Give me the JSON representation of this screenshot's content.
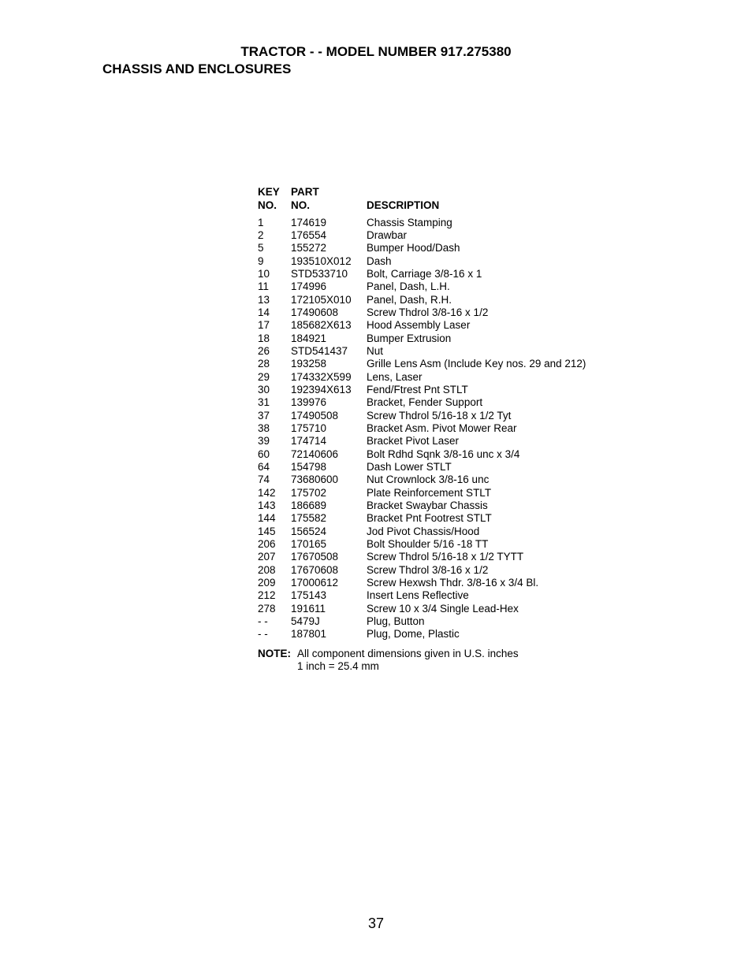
{
  "header": {
    "title": "TRACTOR - - MODEL NUMBER  917.275380",
    "subtitle": "CHASSIS AND ENCLOSURES"
  },
  "columns": {
    "key_line1": "KEY",
    "key_line2": "NO.",
    "part_line1": "PART",
    "part_line2": "NO.",
    "desc": "DESCRIPTION"
  },
  "parts": [
    {
      "key": "1",
      "part": "174619",
      "desc": "Chassis Stamping"
    },
    {
      "key": "2",
      "part": "176554",
      "desc": "Drawbar"
    },
    {
      "key": "5",
      "part": "155272",
      "desc": "Bumper Hood/Dash"
    },
    {
      "key": "9",
      "part": "193510X012",
      "desc": "Dash"
    },
    {
      "key": "10",
      "part": "STD533710",
      "desc": "Bolt, Carriage  3/8-16 x 1"
    },
    {
      "key": "11",
      "part": "174996",
      "desc": "Panel, Dash, L.H."
    },
    {
      "key": "13",
      "part": "172105X010",
      "desc": "Panel, Dash, R.H."
    },
    {
      "key": "14",
      "part": "17490608",
      "desc": "Screw Thdrol 3/8-16 x 1/2"
    },
    {
      "key": "17",
      "part": "185682X613",
      "desc": "Hood Assembly Laser"
    },
    {
      "key": "18",
      "part": "184921",
      "desc": "Bumper Extrusion"
    },
    {
      "key": "26",
      "part": "STD541437",
      "desc": "Nut"
    },
    {
      "key": "28",
      "part": "193258",
      "desc": "Grille Lens Asm (Include Key nos. 29 and 212)"
    },
    {
      "key": "29",
      "part": "174332X599",
      "desc": "Lens, Laser"
    },
    {
      "key": "30",
      "part": "192394X613",
      "desc": "Fend/Ftrest Pnt STLT"
    },
    {
      "key": "31",
      "part": "139976",
      "desc": "Bracket, Fender Support"
    },
    {
      "key": "37",
      "part": "17490508",
      "desc": "Screw Thdrol  5/16-18 x 1/2 Tyt"
    },
    {
      "key": "38",
      "part": "175710",
      "desc": "Bracket  Asm. Pivot Mower Rear"
    },
    {
      "key": "39",
      "part": "174714",
      "desc": "Bracket Pivot Laser"
    },
    {
      "key": "60",
      "part": "72140606",
      "desc": "Bolt Rdhd Sqnk 3/8-16 unc x 3/4"
    },
    {
      "key": "64",
      "part": "154798",
      "desc": "Dash Lower STLT"
    },
    {
      "key": "74",
      "part": "73680600",
      "desc": "Nut Crownlock 3/8-16 unc"
    },
    {
      "key": "142",
      "part": "175702",
      "desc": "Plate Reinforcement STLT"
    },
    {
      "key": "143",
      "part": "186689",
      "desc": "Bracket Swaybar Chassis"
    },
    {
      "key": "144",
      "part": "175582",
      "desc": "Bracket Pnt Footrest STLT"
    },
    {
      "key": "145",
      "part": "156524",
      "desc": "Jod Pivot Chassis/Hood"
    },
    {
      "key": "206",
      "part": "170165",
      "desc": "Bolt  Shoulder 5/16 -18 TT"
    },
    {
      "key": "207",
      "part": "17670508",
      "desc": "Screw Thdrol  5/16-18 x 1/2 TYTT"
    },
    {
      "key": "208",
      "part": "17670608",
      "desc": "Screw Thdrol  3/8-16 x 1/2"
    },
    {
      "key": "209",
      "part": "17000612",
      "desc": "Screw Hexwsh Thdr. 3/8-16 x 3/4 Bl."
    },
    {
      "key": "212",
      "part": "175143",
      "desc": "Insert Lens Reflective"
    },
    {
      "key": "278",
      "part": "191611",
      "desc": "Screw 10 x 3/4 Single Lead-Hex"
    },
    {
      "key": "- -",
      "part": "5479J",
      "desc": "Plug, Button"
    },
    {
      "key": "- -",
      "part": "187801",
      "desc": "Plug, Dome, Plastic"
    }
  ],
  "note": {
    "label": "NOTE:",
    "line1": "All component dimensions given in U.S. inches",
    "line2": "1 inch = 25.4 mm"
  },
  "page_number": "37"
}
